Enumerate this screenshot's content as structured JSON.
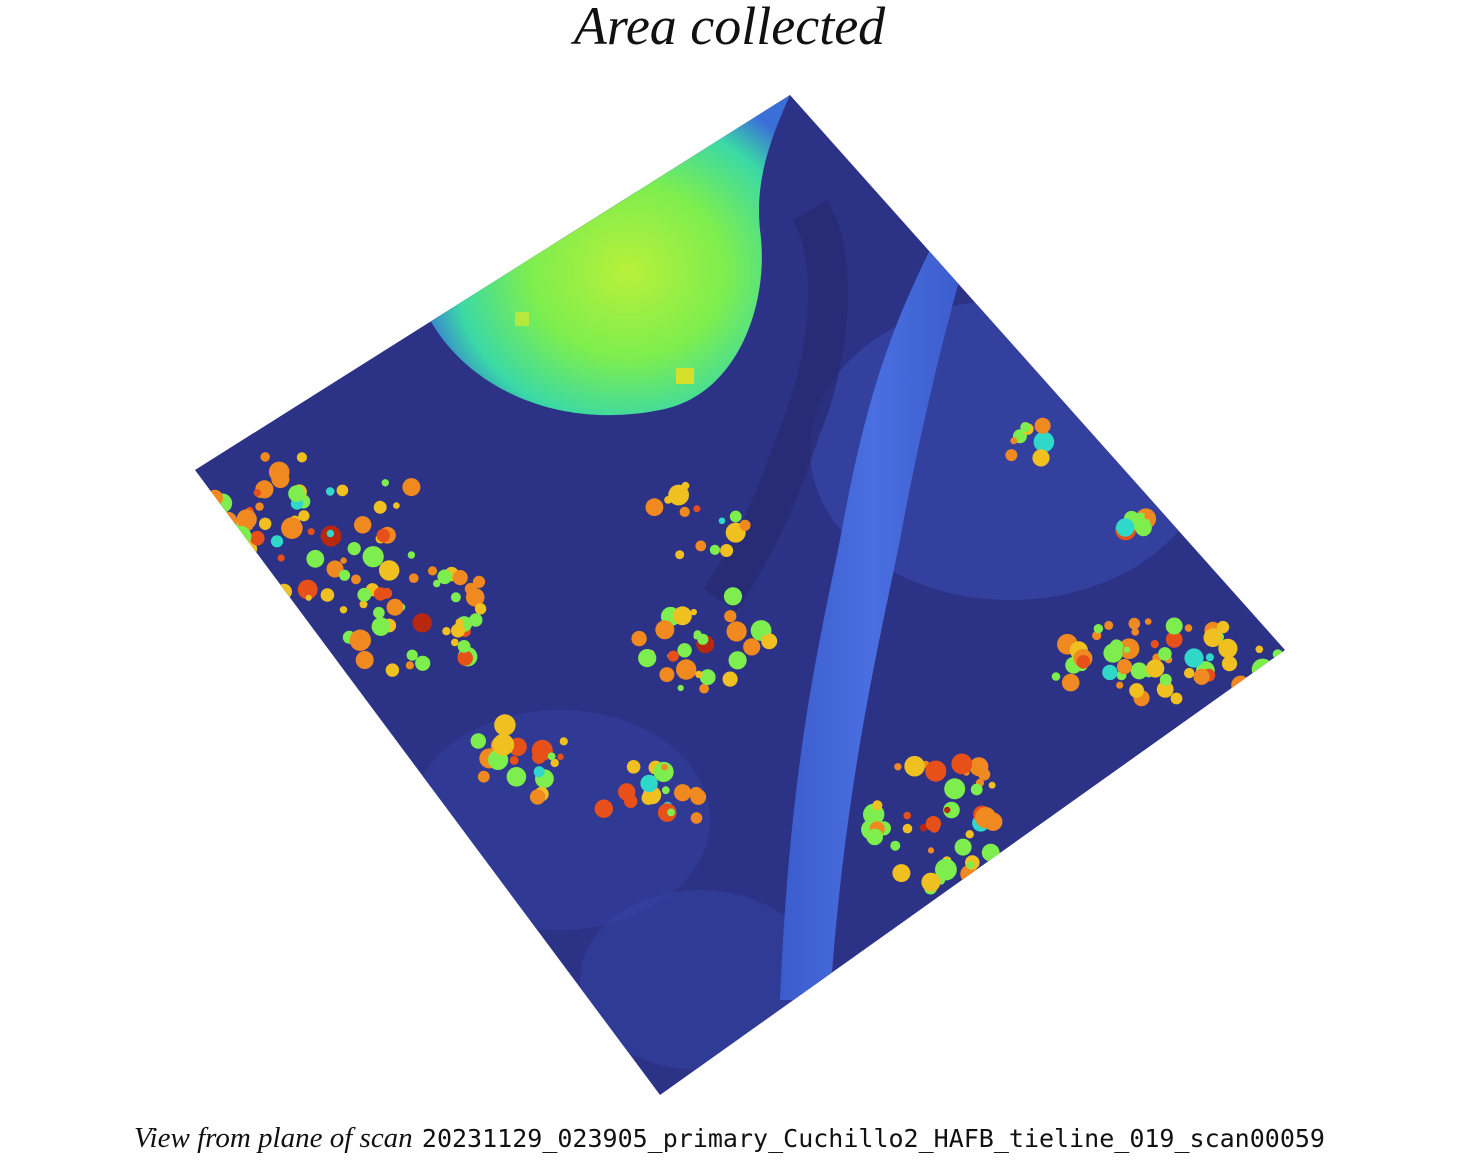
{
  "title": "Area collected",
  "caption": {
    "lead": "View from plane of scan",
    "scan_id": "20231129_023905_primary_Cuchillo2_HAFB_tieline_019_scan00059"
  },
  "map": {
    "colormap": "turbo",
    "colors": {
      "ground_low": "#2b2f7a",
      "ground_mid": "#3a4fb8",
      "road": "#3f63d6",
      "high_field": "#8ef04a",
      "field_edge": "#2fd8c8",
      "tree_mid": "#f0c020",
      "tree_high": "#e8501a",
      "tree_top": "#9a1a0a"
    }
  }
}
